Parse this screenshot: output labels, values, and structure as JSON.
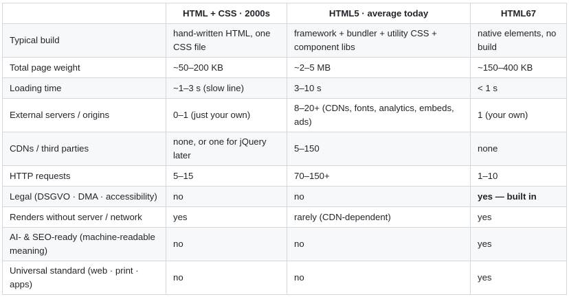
{
  "table": {
    "headers": [
      "",
      "HTML + CSS · 2000s",
      "HTML5 · average today",
      "HTML67"
    ],
    "rows": [
      {
        "label": "Typical build",
        "cells": [
          "hand-written HTML, one CSS file",
          "framework + bundler + utility CSS + component libs",
          "native elements, no build"
        ]
      },
      {
        "label": "Total page weight",
        "cells": [
          "~50–200 KB",
          "~2–5 MB",
          "~150–400 KB"
        ]
      },
      {
        "label": "Loading time",
        "cells": [
          "~1–3 s (slow line)",
          "3–10 s",
          "< 1 s"
        ]
      },
      {
        "label": "External servers / origins",
        "cells": [
          "0–1 (just your own)",
          "8–20+ (CDNs, fonts, analytics, embeds, ads)",
          "1 (your own)"
        ]
      },
      {
        "label": "CDNs / third parties",
        "cells": [
          "none, or one for jQuery later",
          "5–150",
          "none"
        ]
      },
      {
        "label": "HTTP requests",
        "cells": [
          "5–15",
          "70–150+",
          "1–10"
        ]
      },
      {
        "label": "Legal (DSGVO · DMA · accessibility)",
        "cells": [
          "no",
          "no",
          "yes — built in"
        ]
      },
      {
        "label": "Renders without server / network",
        "cells": [
          "yes",
          "rarely (CDN-dependent)",
          "yes"
        ]
      },
      {
        "label": "AI- & SEO-ready (machine-readable meaning)",
        "cells": [
          "no",
          "no",
          "yes"
        ]
      },
      {
        "label": "Universal standard (web · print · apps)",
        "cells": [
          "no",
          "no",
          "yes"
        ]
      }
    ]
  }
}
